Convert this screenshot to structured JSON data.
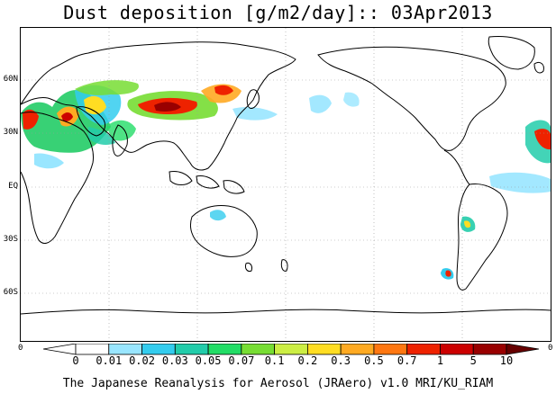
{
  "title": "Dust deposition [g/m2/day]:: 03Apr2013",
  "map": {
    "latitude_labels": [
      "60N",
      "30N",
      "EQ",
      "30S",
      "60S"
    ],
    "colors": {
      "land_outline": "#000000",
      "gridline": "#999999"
    }
  },
  "colorbar": {
    "edge_left": "0",
    "edge_right": "0",
    "labels": [
      "0",
      "0.01",
      "0.02",
      "0.03",
      "0.05",
      "0.07",
      "0.1",
      "0.2",
      "0.3",
      "0.5",
      "0.7",
      "1",
      "5",
      "10"
    ],
    "colors": [
      "#ffffff",
      "#ffffff",
      "#99e6ff",
      "#33ccee",
      "#22ccaa",
      "#22dd66",
      "#77dd33",
      "#ccee44",
      "#ffdd22",
      "#ffaa22",
      "#ff7711",
      "#ee2200",
      "#cc0000",
      "#990000",
      "#660000"
    ]
  },
  "footer": "The Japanese Reanalysis for Aerosol (JRAero) v1.0 MRI/KU_RIAM"
}
